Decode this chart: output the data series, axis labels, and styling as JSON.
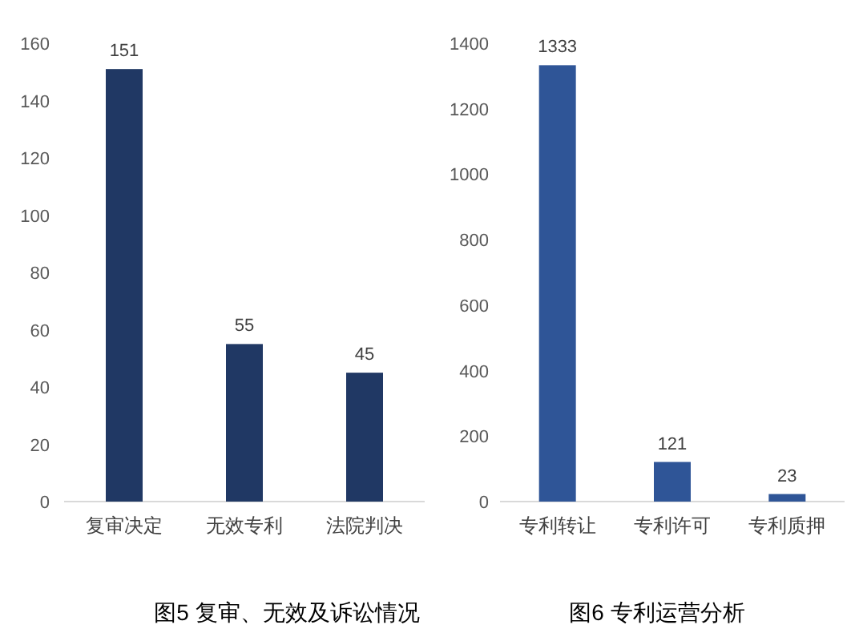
{
  "chart_data": [
    {
      "type": "bar",
      "title": "图5 复审、无效及诉讼情况",
      "categories": [
        "复审决定",
        "无效专利",
        "法院判决"
      ],
      "values": [
        151,
        55,
        45
      ],
      "color": "#203864",
      "ylim": [
        0,
        160
      ],
      "yticks": [
        0,
        20,
        40,
        60,
        80,
        100,
        120,
        140,
        160
      ],
      "data_labels": true
    },
    {
      "type": "bar",
      "title": "图6 专利运营分析",
      "categories": [
        "专利转让",
        "专利许可",
        "专利质押"
      ],
      "values": [
        1333,
        121,
        23
      ],
      "color": "#2f5597",
      "ylim": [
        0,
        1400
      ],
      "yticks": [
        0,
        200,
        400,
        600,
        800,
        1000,
        1200,
        1400
      ],
      "data_labels": true
    }
  ]
}
